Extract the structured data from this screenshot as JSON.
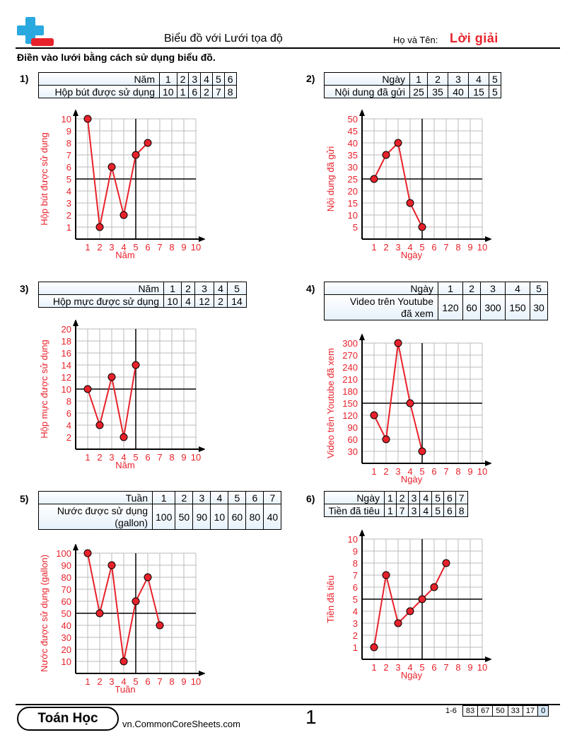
{
  "header": {
    "title": "Biểu đồ với Lưới tọa độ",
    "name_label": "Họ và Tên:",
    "answer_label": "Lời giải"
  },
  "instructions": "Điền vào lưới bằng cách sử dụng biểu đồ.",
  "problems": [
    {
      "num": "1)",
      "row1_label": "Năm",
      "row2_label": "Hộp bút được sử dụng",
      "x": [
        "1",
        "2",
        "3",
        "4",
        "5",
        "6"
      ],
      "y": [
        "10",
        "1",
        "6",
        "2",
        "7",
        "8"
      ],
      "chart": {
        "xlabel": "Năm",
        "ylabel": "Hộp bút được sử dụng",
        "ymax": 10,
        "xticks": [
          "1",
          "2",
          "3",
          "4",
          "5",
          "6",
          "7",
          "8",
          "9",
          "10"
        ],
        "yticks": [
          "1",
          "2",
          "3",
          "4",
          "5",
          "6",
          "7",
          "8",
          "9",
          "10"
        ],
        "points": [
          [
            1,
            10
          ],
          [
            2,
            1
          ],
          [
            3,
            6
          ],
          [
            4,
            2
          ],
          [
            5,
            7
          ],
          [
            6,
            8
          ]
        ],
        "cross": [
          5,
          5
        ]
      }
    },
    {
      "num": "2)",
      "row1_label": "Ngày",
      "row2_label": "Nội dung đã gửi",
      "x": [
        "1",
        "2",
        "3",
        "4",
        "5"
      ],
      "y": [
        "25",
        "35",
        "40",
        "15",
        "5"
      ],
      "chart": {
        "xlabel": "Ngày",
        "ylabel": "Nội dung đã gửi",
        "ymax": 50,
        "xticks": [
          "1",
          "2",
          "3",
          "4",
          "5",
          "6",
          "7",
          "8",
          "9",
          "10"
        ],
        "yticks": [
          "5",
          "10",
          "15",
          "20",
          "25",
          "30",
          "35",
          "40",
          "45",
          "50"
        ],
        "points": [
          [
            1,
            25
          ],
          [
            2,
            35
          ],
          [
            3,
            40
          ],
          [
            4,
            15
          ],
          [
            5,
            5
          ]
        ],
        "cross": [
          5,
          25
        ]
      }
    },
    {
      "num": "3)",
      "row1_label": "Năm",
      "row2_label": "Hộp mực được sử dụng",
      "x": [
        "1",
        "2",
        "3",
        "4",
        "5"
      ],
      "y": [
        "10",
        "4",
        "12",
        "2",
        "14"
      ],
      "chart": {
        "xlabel": "Năm",
        "ylabel": "Hộp mực được sử dụng",
        "ymax": 20,
        "xticks": [
          "1",
          "2",
          "3",
          "4",
          "5",
          "6",
          "7",
          "8",
          "9",
          "10"
        ],
        "yticks": [
          "2",
          "4",
          "6",
          "8",
          "10",
          "12",
          "14",
          "16",
          "18",
          "20"
        ],
        "points": [
          [
            1,
            10
          ],
          [
            2,
            4
          ],
          [
            3,
            12
          ],
          [
            4,
            2
          ],
          [
            5,
            14
          ]
        ],
        "cross": [
          5,
          10
        ]
      }
    },
    {
      "num": "4)",
      "row1_label": "Ngày",
      "row2_label": "Video trên Youtube đã xem",
      "row2_label_a": "Video trên Youtube",
      "row2_label_b": "đã xem",
      "x": [
        "1",
        "2",
        "3",
        "4",
        "5"
      ],
      "y": [
        "120",
        "60",
        "300",
        "150",
        "30"
      ],
      "chart": {
        "xlabel": "Ngày",
        "ylabel": "Video trên Youtube đã xem",
        "ymax": 300,
        "xticks": [
          "1",
          "2",
          "3",
          "4",
          "5",
          "6",
          "7",
          "8",
          "9",
          "10"
        ],
        "yticks": [
          "30",
          "60",
          "90",
          "120",
          "150",
          "180",
          "210",
          "240",
          "270",
          "300"
        ],
        "points": [
          [
            1,
            120
          ],
          [
            2,
            60
          ],
          [
            3,
            300
          ],
          [
            4,
            150
          ],
          [
            5,
            30
          ]
        ],
        "cross": [
          5,
          150
        ]
      }
    },
    {
      "num": "5)",
      "row1_label": "Tuần",
      "row2_label_a": "Nước được sử dụng",
      "row2_label_b": "(gallon)",
      "x": [
        "1",
        "2",
        "3",
        "4",
        "5",
        "6",
        "7"
      ],
      "y": [
        "100",
        "50",
        "90",
        "10",
        "60",
        "80",
        "40"
      ],
      "chart": {
        "xlabel": "Tuần",
        "ylabel": "Nước được sử dụng (gallon)",
        "ymax": 100,
        "xticks": [
          "1",
          "2",
          "3",
          "4",
          "5",
          "6",
          "7",
          "8",
          "9",
          "10"
        ],
        "yticks": [
          "10",
          "20",
          "30",
          "40",
          "50",
          "60",
          "70",
          "80",
          "90",
          "100"
        ],
        "points": [
          [
            1,
            100
          ],
          [
            2,
            50
          ],
          [
            3,
            90
          ],
          [
            4,
            10
          ],
          [
            5,
            60
          ],
          [
            6,
            80
          ],
          [
            7,
            40
          ]
        ],
        "cross": [
          5,
          50
        ]
      }
    },
    {
      "num": "6)",
      "row1_label": "Ngày",
      "row2_label": "Tiền đã tiêu",
      "x": [
        "1",
        "2",
        "3",
        "4",
        "5",
        "6",
        "7"
      ],
      "y": [
        "1",
        "7",
        "3",
        "4",
        "5",
        "6",
        "8"
      ],
      "chart": {
        "xlabel": "Ngày",
        "ylabel": "Tiền đã tiêu",
        "ymax": 10,
        "xticks": [
          "1",
          "2",
          "3",
          "4",
          "5",
          "6",
          "7",
          "8",
          "9",
          "10"
        ],
        "yticks": [
          "1",
          "2",
          "3",
          "4",
          "5",
          "6",
          "7",
          "8",
          "9",
          "10"
        ],
        "points": [
          [
            1,
            1
          ],
          [
            2,
            7
          ],
          [
            3,
            3
          ],
          [
            4,
            4
          ],
          [
            5,
            5
          ],
          [
            6,
            6
          ],
          [
            7,
            8
          ]
        ],
        "cross": [
          5,
          5
        ]
      }
    }
  ],
  "footer": {
    "brand": "Toán Học",
    "site": "vn.CommonCoreSheets.com",
    "page": "1",
    "range": "1-6",
    "scores": [
      "83",
      "67",
      "50",
      "33",
      "17",
      "0"
    ]
  },
  "colors": {
    "accent": "#e8222b",
    "logo_blue": "#29a9e0",
    "grid": "#bbbbbb"
  }
}
